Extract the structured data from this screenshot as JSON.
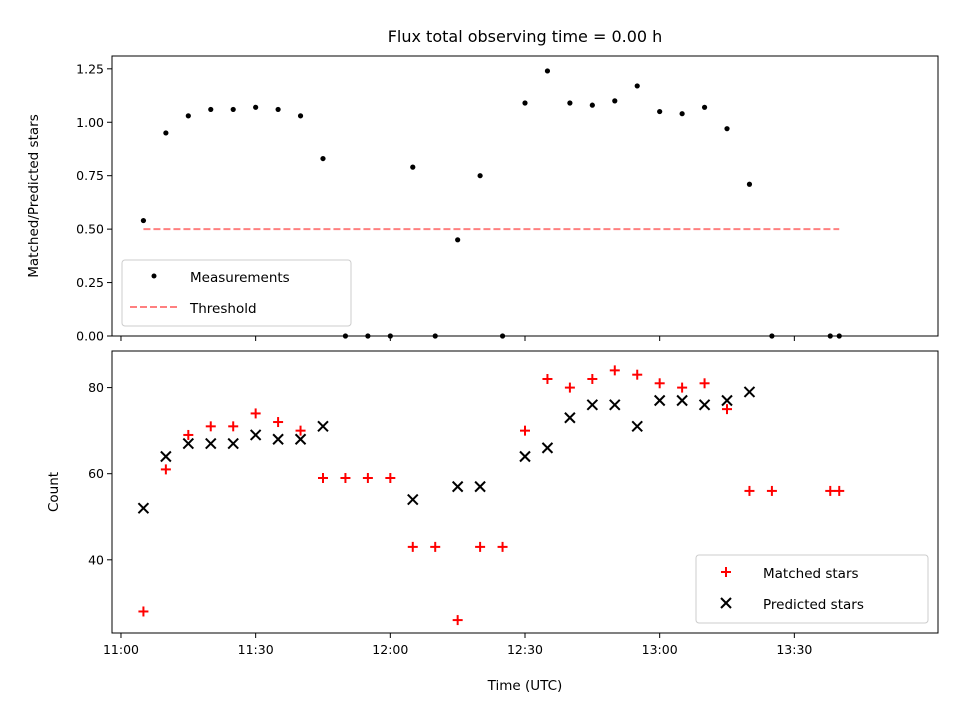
{
  "chart_data": [
    {
      "type": "scatter",
      "title": "Flux total observing time = 0.00 h",
      "xlabel": "",
      "ylabel": "Matched/Predicted stars",
      "xlim": [
        "10:58",
        "14:02"
      ],
      "ylim": [
        0.0,
        1.31
      ],
      "yticks": [
        "0.00",
        "0.25",
        "0.50",
        "0.75",
        "1.00",
        "1.25"
      ],
      "xticks": [
        "11:00",
        "11:30",
        "12:00",
        "12:30",
        "13:00",
        "13:30"
      ],
      "xtick_labels_shown": false,
      "grid": false,
      "legend": "lower-left",
      "series": [
        {
          "name": "Measurements",
          "marker": "dot",
          "color": "#000000",
          "x": [
            "11:05",
            "11:10",
            "11:15",
            "11:20",
            "11:25",
            "11:30",
            "11:35",
            "11:40",
            "11:45",
            "11:50",
            "11:55",
            "12:00",
            "12:05",
            "12:10",
            "12:15",
            "12:20",
            "12:25",
            "12:30",
            "12:35",
            "12:40",
            "12:45",
            "12:50",
            "12:55",
            "13:00",
            "13:05",
            "13:10",
            "13:15",
            "13:20",
            "13:25",
            "13:38",
            "13:40"
          ],
          "y": [
            0.54,
            0.95,
            1.03,
            1.06,
            1.06,
            1.07,
            1.06,
            1.03,
            0.83,
            0.0,
            0.0,
            0.0,
            0.79,
            0.0,
            0.45,
            0.75,
            0.0,
            1.09,
            1.24,
            1.09,
            1.08,
            1.1,
            1.17,
            1.05,
            1.04,
            1.07,
            0.97,
            0.71,
            0.0,
            0.0,
            0.0
          ]
        },
        {
          "name": "Threshold",
          "marker": "dashed-line",
          "color": "#ff8080",
          "x": [
            "11:05",
            "13:40"
          ],
          "y": [
            0.5,
            0.5
          ]
        }
      ]
    },
    {
      "type": "scatter",
      "title": "",
      "xlabel": "Time (UTC)",
      "ylabel": "Count",
      "xlim": [
        "10:58",
        "14:02"
      ],
      "ylim": [
        23,
        88.5
      ],
      "yticks": [
        "40",
        "60",
        "80"
      ],
      "xticks": [
        "11:00",
        "11:30",
        "12:00",
        "12:30",
        "13:00",
        "13:30"
      ],
      "xtick_labels_shown": true,
      "grid": false,
      "legend": "lower-right",
      "series": [
        {
          "name": "Matched stars",
          "marker": "plus",
          "color": "#ff0000",
          "x": [
            "11:05",
            "11:10",
            "11:15",
            "11:20",
            "11:25",
            "11:30",
            "11:35",
            "11:40",
            "11:45",
            "11:50",
            "11:55",
            "12:00",
            "12:05",
            "12:10",
            "12:15",
            "12:20",
            "12:25",
            "12:30",
            "12:35",
            "12:40",
            "12:45",
            "12:50",
            "12:55",
            "13:00",
            "13:05",
            "13:10",
            "13:15",
            "13:20",
            "13:25",
            "13:38",
            "13:40"
          ],
          "y": [
            28,
            61,
            69,
            71,
            71,
            74,
            72,
            70,
            59,
            59,
            59,
            59,
            43,
            43,
            26,
            43,
            43,
            70,
            82,
            80,
            82,
            84,
            83,
            81,
            80,
            81,
            75,
            56,
            56,
            56,
            56
          ]
        },
        {
          "name": "Predicted stars",
          "marker": "x",
          "color": "#000000",
          "x": [
            "11:05",
            "11:10",
            "11:15",
            "11:20",
            "11:25",
            "11:30",
            "11:35",
            "11:40",
            "11:45",
            "12:05",
            "12:15",
            "12:20",
            "12:30",
            "12:35",
            "12:40",
            "12:45",
            "12:50",
            "12:55",
            "13:00",
            "13:05",
            "13:10",
            "13:15",
            "13:20"
          ],
          "y": [
            52,
            64,
            67,
            67,
            67,
            69,
            68,
            68,
            71,
            54,
            57,
            57,
            64,
            66,
            73,
            76,
            76,
            71,
            77,
            77,
            76,
            77,
            79
          ]
        }
      ]
    }
  ]
}
